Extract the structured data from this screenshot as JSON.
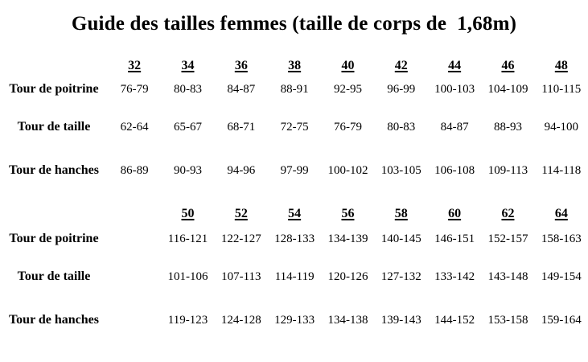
{
  "title": "Guide des tailles femmes (taille de corps de  1,68m)",
  "colors": {
    "text": "#000000",
    "background": "#ffffff"
  },
  "upper": {
    "sizes": [
      "32",
      "34",
      "36",
      "38",
      "40",
      "42",
      "44",
      "46",
      "48"
    ],
    "rows": [
      {
        "label": "Tour de poitrine",
        "values": [
          "76-79",
          "80-83",
          "84-87",
          "88-91",
          "92-95",
          "96-99",
          "100-103",
          "104-109",
          "110-115"
        ]
      },
      {
        "label": "Tour de taille",
        "values": [
          "62-64",
          "65-67",
          "68-71",
          "72-75",
          "76-79",
          "80-83",
          "84-87",
          "88-93",
          "94-100"
        ]
      },
      {
        "label": "Tour de hanches",
        "values": [
          "86-89",
          "90-93",
          "94-96",
          "97-99",
          "100-102",
          "103-105",
          "106-108",
          "109-113",
          "114-118"
        ]
      }
    ]
  },
  "lower": {
    "sizes": [
      "50",
      "52",
      "54",
      "56",
      "58",
      "60",
      "62",
      "64"
    ],
    "rows": [
      {
        "label": "Tour de poitrine",
        "values": [
          "116-121",
          "122-127",
          "128-133",
          "134-139",
          "140-145",
          "146-151",
          "152-157",
          "158-163"
        ]
      },
      {
        "label": "Tour de taille",
        "values": [
          "101-106",
          "107-113",
          "114-119",
          "120-126",
          "127-132",
          "133-142",
          "143-148",
          "149-154"
        ]
      },
      {
        "label": "Tour de hanches",
        "values": [
          "119-123",
          "124-128",
          "129-133",
          "134-138",
          "139-143",
          "144-152",
          "153-158",
          "159-164"
        ]
      }
    ]
  }
}
